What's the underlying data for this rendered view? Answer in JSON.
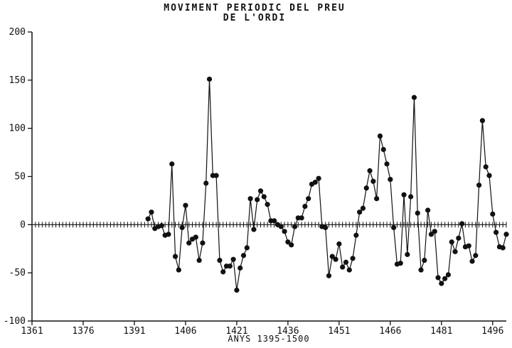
{
  "chart_data": {
    "type": "line",
    "title_lines": [
      "MOVIMENT PERIODIC DEL PREU",
      "DE L'ORDI"
    ],
    "xlabel": "ANYS 1395-1500",
    "ylabel": "",
    "xlim": [
      1361,
      1500
    ],
    "ylim": [
      -100,
      200
    ],
    "x_ticks": [
      "1361",
      "1376",
      "1391",
      "1406",
      "1421",
      "1436",
      "1451",
      "1466",
      "1481",
      "1496"
    ],
    "y_ticks": [
      "200",
      "150",
      "100",
      "50",
      "0",
      "-50",
      "-100"
    ],
    "y_tick_values": [
      200,
      150,
      100,
      50,
      0,
      -50,
      -100
    ],
    "zero_line_ticks": true,
    "grid": false,
    "series": [
      {
        "x": [
          1395,
          1396,
          1397,
          1398,
          1399,
          1400,
          1401,
          1402,
          1403,
          1404,
          1405,
          1406,
          1407,
          1408,
          1409,
          1410,
          1411,
          1412,
          1413,
          1414,
          1415,
          1416,
          1417,
          1418,
          1419,
          1420,
          1421,
          1422,
          1423,
          1424,
          1425,
          1426,
          1427,
          1428,
          1429,
          1430,
          1431,
          1432,
          1433,
          1434,
          1435,
          1436,
          1437,
          1438,
          1439,
          1440,
          1441,
          1442,
          1443,
          1444,
          1445,
          1446,
          1447,
          1448,
          1449,
          1450,
          1451,
          1452,
          1453,
          1454,
          1455,
          1456,
          1457,
          1458,
          1459,
          1460,
          1461,
          1462,
          1463,
          1464,
          1465,
          1466,
          1467,
          1468,
          1469,
          1470,
          1471,
          1472,
          1473,
          1474,
          1475,
          1476,
          1477,
          1478,
          1479,
          1480,
          1481,
          1482,
          1483,
          1484,
          1485,
          1486,
          1487,
          1488,
          1489,
          1490,
          1491,
          1492,
          1493,
          1494,
          1495,
          1496,
          1497,
          1498,
          1499,
          1500
        ],
        "values": [
          6,
          13,
          -4,
          -2,
          -1,
          -11,
          -10,
          63,
          -33,
          -47,
          -3,
          20,
          -19,
          -15,
          -13,
          -37,
          -19,
          43,
          151,
          51,
          51,
          -37,
          -49,
          -43,
          -43,
          -36,
          -68,
          -45,
          -32,
          -24,
          27,
          -5,
          26,
          35,
          29,
          21,
          4,
          4,
          0,
          -2,
          -7,
          -18,
          -21,
          -2,
          7,
          7,
          19,
          27,
          42,
          44,
          48,
          -2,
          -3,
          -53,
          -33,
          -36,
          -20,
          -44,
          -39,
          -47,
          -35,
          -11,
          13,
          17,
          38,
          56,
          45,
          27,
          92,
          78,
          63,
          47,
          -3,
          -41,
          -40,
          31,
          -31,
          29,
          132,
          12,
          -47,
          -37,
          15,
          -10,
          -7,
          -55,
          -61,
          -56,
          -52,
          -18,
          -28,
          -14,
          1,
          -23,
          -22,
          -38,
          -32,
          41,
          108,
          60,
          51,
          11,
          -8,
          -23,
          -24,
          -10
        ]
      }
    ]
  }
}
